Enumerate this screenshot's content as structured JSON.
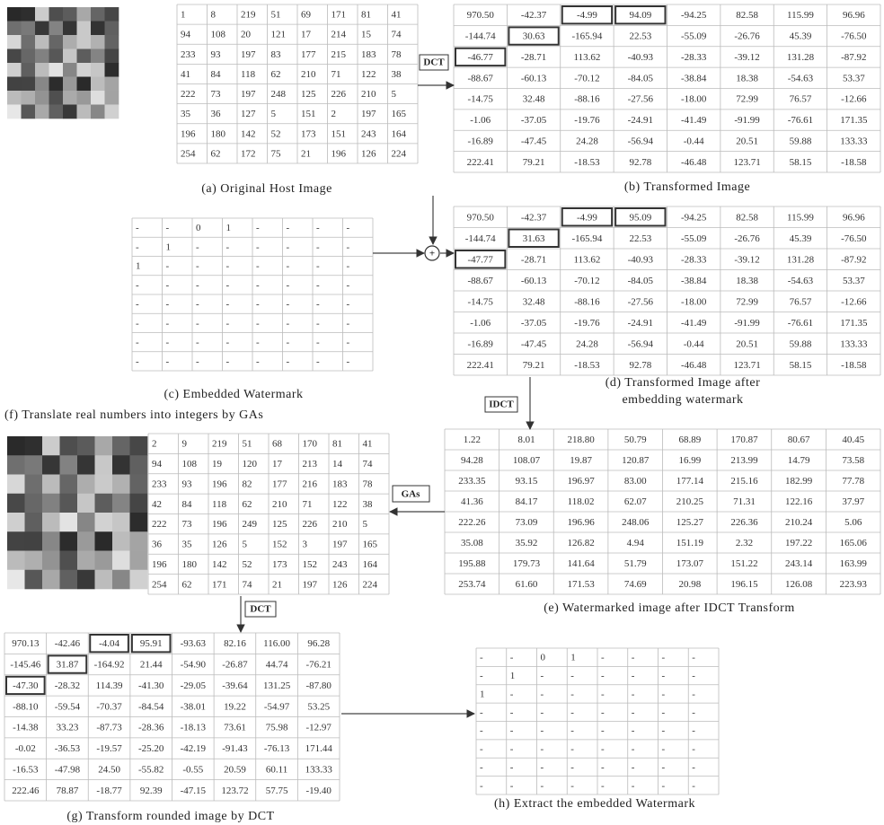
{
  "tables": {
    "a": {
      "rows": [
        [
          "1",
          "8",
          "219",
          "51",
          "69",
          "171",
          "81",
          "41"
        ],
        [
          "94",
          "108",
          "20",
          "121",
          "17",
          "214",
          "15",
          "74"
        ],
        [
          "233",
          "93",
          "197",
          "83",
          "177",
          "215",
          "183",
          "78"
        ],
        [
          "41",
          "84",
          "118",
          "62",
          "210",
          "71",
          "122",
          "38"
        ],
        [
          "222",
          "73",
          "197",
          "248",
          "125",
          "226",
          "210",
          "5"
        ],
        [
          "35",
          "36",
          "127",
          "5",
          "151",
          "2",
          "197",
          "165"
        ],
        [
          "196",
          "180",
          "142",
          "52",
          "173",
          "151",
          "243",
          "164"
        ],
        [
          "254",
          "62",
          "172",
          "75",
          "21",
          "196",
          "126",
          "224"
        ]
      ]
    },
    "b": {
      "rows": [
        [
          "970.50",
          "-42.37",
          "-4.99",
          "94.09",
          "-94.25",
          "82.58",
          "115.99",
          "96.96"
        ],
        [
          "-144.74",
          "30.63",
          "-165.94",
          "22.53",
          "-55.09",
          "-26.76",
          "45.39",
          "-76.50"
        ],
        [
          "-46.77",
          "-28.71",
          "113.62",
          "-40.93",
          "-28.33",
          "-39.12",
          "131.28",
          "-87.92"
        ],
        [
          "-88.67",
          "-60.13",
          "-70.12",
          "-84.05",
          "-38.84",
          "18.38",
          "-54.63",
          "53.37"
        ],
        [
          "-14.75",
          "32.48",
          "-88.16",
          "-27.56",
          "-18.00",
          "72.99",
          "76.57",
          "-12.66"
        ],
        [
          "-1.06",
          "-37.05",
          "-19.76",
          "-24.91",
          "-41.49",
          "-91.99",
          "-76.61",
          "171.35"
        ],
        [
          "-16.89",
          "-47.45",
          "24.28",
          "-56.94",
          "-0.44",
          "20.51",
          "59.88",
          "133.33"
        ],
        [
          "222.41",
          "79.21",
          "-18.53",
          "92.78",
          "-46.48",
          "123.71",
          "58.15",
          "-18.58"
        ]
      ]
    },
    "c": {
      "rows": [
        [
          "-",
          "-",
          "0",
          "1",
          "-",
          "-",
          "-",
          "-"
        ],
        [
          "-",
          "1",
          "-",
          "-",
          "-",
          "-",
          "-",
          "-"
        ],
        [
          "1",
          "-",
          "-",
          "-",
          "-",
          "-",
          "-",
          "-"
        ],
        [
          "-",
          "-",
          "-",
          "-",
          "-",
          "-",
          "-",
          "-"
        ],
        [
          "-",
          "-",
          "-",
          "-",
          "-",
          "-",
          "-",
          "-"
        ],
        [
          "-",
          "-",
          "-",
          "-",
          "-",
          "-",
          "-",
          "-"
        ],
        [
          "-",
          "-",
          "-",
          "-",
          "-",
          "-",
          "-",
          "-"
        ],
        [
          "-",
          "-",
          "-",
          "-",
          "-",
          "-",
          "-",
          "-"
        ]
      ]
    },
    "d": {
      "rows": [
        [
          "970.50",
          "-42.37",
          "-4.99",
          "95.09",
          "-94.25",
          "82.58",
          "115.99",
          "96.96"
        ],
        [
          "-144.74",
          "31.63",
          "-165.94",
          "22.53",
          "-55.09",
          "-26.76",
          "45.39",
          "-76.50"
        ],
        [
          "-47.77",
          "-28.71",
          "113.62",
          "-40.93",
          "-28.33",
          "-39.12",
          "131.28",
          "-87.92"
        ],
        [
          "-88.67",
          "-60.13",
          "-70.12",
          "-84.05",
          "-38.84",
          "18.38",
          "-54.63",
          "53.37"
        ],
        [
          "-14.75",
          "32.48",
          "-88.16",
          "-27.56",
          "-18.00",
          "72.99",
          "76.57",
          "-12.66"
        ],
        [
          "-1.06",
          "-37.05",
          "-19.76",
          "-24.91",
          "-41.49",
          "-91.99",
          "-76.61",
          "171.35"
        ],
        [
          "-16.89",
          "-47.45",
          "24.28",
          "-56.94",
          "-0.44",
          "20.51",
          "59.88",
          "133.33"
        ],
        [
          "222.41",
          "79.21",
          "-18.53",
          "92.78",
          "-46.48",
          "123.71",
          "58.15",
          "-18.58"
        ]
      ]
    },
    "e": {
      "rows": [
        [
          "1.22",
          "8.01",
          "218.80",
          "50.79",
          "68.89",
          "170.87",
          "80.67",
          "40.45"
        ],
        [
          "94.28",
          "108.07",
          "19.87",
          "120.87",
          "16.99",
          "213.99",
          "14.79",
          "73.58"
        ],
        [
          "233.35",
          "93.15",
          "196.97",
          "83.00",
          "177.14",
          "215.16",
          "182.99",
          "77.78"
        ],
        [
          "41.36",
          "84.17",
          "118.02",
          "62.07",
          "210.25",
          "71.31",
          "122.16",
          "37.97"
        ],
        [
          "222.26",
          "73.09",
          "196.96",
          "248.06",
          "125.27",
          "226.36",
          "210.24",
          "5.06"
        ],
        [
          "35.08",
          "35.92",
          "126.82",
          "4.94",
          "151.19",
          "2.32",
          "197.22",
          "165.06"
        ],
        [
          "195.88",
          "179.73",
          "141.64",
          "51.79",
          "173.07",
          "151.22",
          "243.14",
          "163.99"
        ],
        [
          "253.74",
          "61.60",
          "171.53",
          "74.69",
          "20.98",
          "196.15",
          "126.08",
          "223.93"
        ]
      ]
    },
    "f": {
      "rows": [
        [
          "2",
          "9",
          "219",
          "51",
          "68",
          "170",
          "81",
          "41"
        ],
        [
          "94",
          "108",
          "19",
          "120",
          "17",
          "213",
          "14",
          "74"
        ],
        [
          "233",
          "93",
          "196",
          "82",
          "177",
          "216",
          "183",
          "78"
        ],
        [
          "42",
          "84",
          "118",
          "62",
          "210",
          "71",
          "122",
          "38"
        ],
        [
          "222",
          "73",
          "196",
          "249",
          "125",
          "226",
          "210",
          "5"
        ],
        [
          "36",
          "35",
          "126",
          "5",
          "152",
          "3",
          "197",
          "165"
        ],
        [
          "196",
          "180",
          "142",
          "52",
          "173",
          "152",
          "243",
          "164"
        ],
        [
          "254",
          "62",
          "171",
          "74",
          "21",
          "197",
          "126",
          "224"
        ]
      ]
    },
    "g": {
      "rows": [
        [
          "970.13",
          "-42.46",
          "-4.04",
          "95.91",
          "-93.63",
          "82.16",
          "116.00",
          "96.28"
        ],
        [
          "-145.46",
          "31.87",
          "-164.92",
          "21.44",
          "-54.90",
          "-26.87",
          "44.74",
          "-76.21"
        ],
        [
          "-47.30",
          "-28.32",
          "114.39",
          "-41.30",
          "-29.05",
          "-39.64",
          "131.25",
          "-87.80"
        ],
        [
          "-88.10",
          "-59.54",
          "-70.37",
          "-84.54",
          "-38.01",
          "19.22",
          "-54.97",
          "53.25"
        ],
        [
          "-14.38",
          "33.23",
          "-87.73",
          "-28.36",
          "-18.13",
          "73.61",
          "75.98",
          "-12.97"
        ],
        [
          "-0.02",
          "-36.53",
          "-19.57",
          "-25.20",
          "-42.19",
          "-91.43",
          "-76.13",
          "171.44"
        ],
        [
          "-16.53",
          "-47.98",
          "24.50",
          "-55.82",
          "-0.55",
          "20.59",
          "60.11",
          "133.33"
        ],
        [
          "222.46",
          "78.87",
          "-18.77",
          "92.39",
          "-47.15",
          "123.72",
          "57.75",
          "-19.40"
        ]
      ]
    },
    "h": {
      "rows": [
        [
          "-",
          "-",
          "0",
          "1",
          "-",
          "-",
          "-",
          "-"
        ],
        [
          "-",
          "1",
          "-",
          "-",
          "-",
          "-",
          "-",
          "-"
        ],
        [
          "1",
          "-",
          "-",
          "-",
          "-",
          "-",
          "-",
          "-"
        ],
        [
          "-",
          "-",
          "-",
          "-",
          "-",
          "-",
          "-",
          "-"
        ],
        [
          "-",
          "-",
          "-",
          "-",
          "-",
          "-",
          "-",
          "-"
        ],
        [
          "-",
          "-",
          "-",
          "-",
          "-",
          "-",
          "-",
          "-"
        ],
        [
          "-",
          "-",
          "-",
          "-",
          "-",
          "-",
          "-",
          "-"
        ],
        [
          "-",
          "-",
          "-",
          "-",
          "-",
          "-",
          "-",
          "-"
        ]
      ]
    }
  },
  "captions": {
    "a": "(a) Original Host Image",
    "b": "(b) Transformed Image",
    "c": "(c) Embedded Watermark",
    "d": [
      "(d) Transformed Image after",
      "embedding watermark"
    ],
    "e": "(e) Watermarked image after IDCT Transform",
    "f": "(f) Translate real numbers into integers by GAs",
    "g": "(g) Transform rounded image by DCT",
    "h": "(h) Extract the embedded Watermark"
  },
  "labels": {
    "dct_1": "DCT",
    "idct": "IDCT",
    "gas": "GAs",
    "dct_2": "DCT",
    "plus": "+"
  }
}
